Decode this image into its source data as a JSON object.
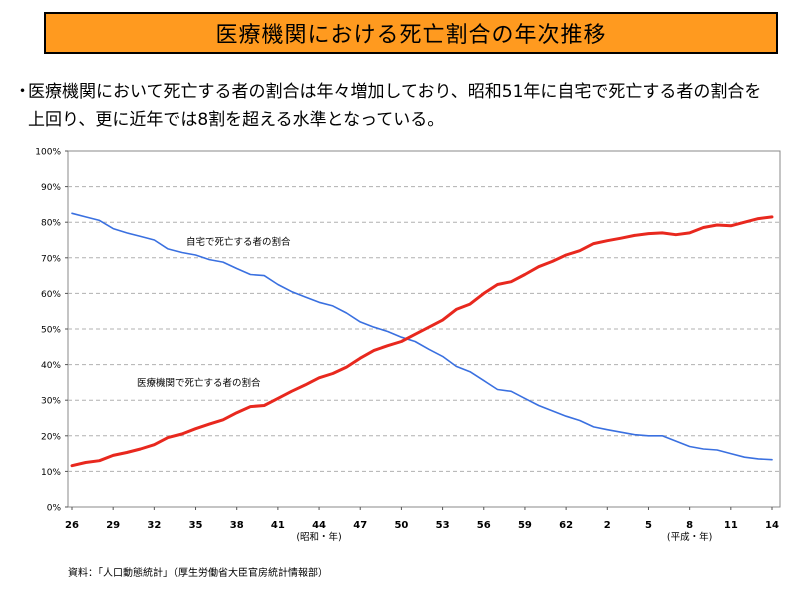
{
  "header": {
    "title": "医療機関における死亡割合の年次推移"
  },
  "bullet": {
    "marker": "・",
    "text": "医療機関において死亡する者の割合は年々増加しており、昭和51年に自宅で死亡する者の割合を上回り、更に近年では8割を超える水準となっている。"
  },
  "source": "資料：「人口動態統計」（厚生労働省大臣官房統計情報部）",
  "chart_data": {
    "type": "line",
    "title": "",
    "xlabel": "",
    "ylabel": "",
    "ylim": [
      0,
      100
    ],
    "y_ticks": [
      "0%",
      "10%",
      "20%",
      "30%",
      "40%",
      "50%",
      "60%",
      "70%",
      "80%",
      "90%",
      "100%"
    ],
    "x_ticks": [
      "26",
      "29",
      "32",
      "35",
      "38",
      "41",
      "44",
      "47",
      "50",
      "53",
      "56",
      "59",
      "62",
      "2",
      "5",
      "8",
      "11",
      "14"
    ],
    "era_labels": [
      "(昭和・年)",
      "(平成・年)"
    ],
    "years": [
      1951,
      1952,
      1953,
      1954,
      1955,
      1956,
      1957,
      1958,
      1959,
      1960,
      1961,
      1962,
      1963,
      1964,
      1965,
      1966,
      1967,
      1968,
      1969,
      1970,
      1971,
      1972,
      1973,
      1974,
      1975,
      1976,
      1977,
      1978,
      1979,
      1980,
      1981,
      1982,
      1983,
      1984,
      1985,
      1986,
      1987,
      1988,
      1989,
      1990,
      1991,
      1992,
      1993,
      1994,
      1995,
      1996,
      1997,
      1998,
      1999,
      2000,
      2001,
      2002
    ],
    "grid": true,
    "series": [
      {
        "name": "自宅で死亡する者の割合",
        "color": "#3a70e0",
        "values": [
          82.5,
          81.5,
          80.5,
          78.2,
          77.0,
          76.0,
          75.0,
          72.5,
          71.5,
          70.8,
          69.5,
          68.8,
          67.0,
          65.3,
          65.0,
          62.5,
          60.5,
          59.0,
          57.5,
          56.5,
          54.5,
          52.0,
          50.5,
          49.3,
          47.7,
          46.5,
          44.3,
          42.3,
          39.5,
          38.0,
          35.5,
          33.0,
          32.5,
          30.5,
          28.5,
          27.0,
          25.5,
          24.3,
          22.5,
          21.7,
          21.0,
          20.3,
          20.0,
          20.0,
          18.5,
          17.0,
          16.3,
          16.0,
          15.0,
          14.0,
          13.5,
          13.3
        ]
      },
      {
        "name": "医療機関で死亡する者の割合",
        "color": "#e8281e",
        "values": [
          11.6,
          12.5,
          13.0,
          14.5,
          15.3,
          16.3,
          17.5,
          19.5,
          20.5,
          22.0,
          23.3,
          24.5,
          26.5,
          28.2,
          28.5,
          30.5,
          32.5,
          34.3,
          36.3,
          37.5,
          39.3,
          41.8,
          44.0,
          45.3,
          46.5,
          48.5,
          50.5,
          52.5,
          55.5,
          57.0,
          60.0,
          62.5,
          63.3,
          65.3,
          67.5,
          69.0,
          70.8,
          72.0,
          74.0,
          74.8,
          75.5,
          76.3,
          76.8,
          77.0,
          76.5,
          77.0,
          78.5,
          79.2,
          79.0,
          80.0,
          81.0,
          81.5
        ]
      }
    ]
  }
}
